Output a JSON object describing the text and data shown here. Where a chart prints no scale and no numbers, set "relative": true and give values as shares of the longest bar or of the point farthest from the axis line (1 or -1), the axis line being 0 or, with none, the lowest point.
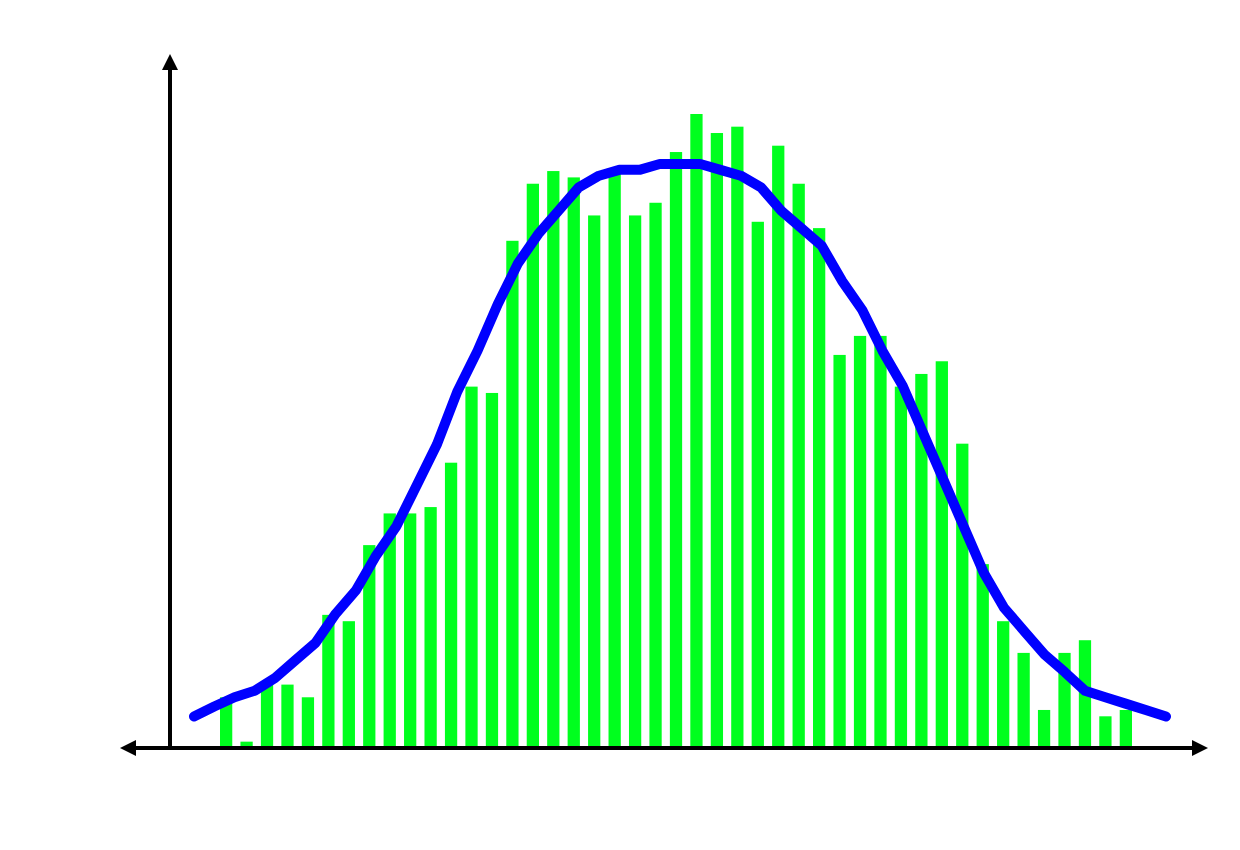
{
  "chart_data": [
    {
      "type": "bar",
      "relative": true,
      "categories": [
        null,
        null,
        null,
        null,
        null,
        null,
        null,
        null,
        null,
        null,
        null,
        null,
        null,
        null,
        null,
        null,
        null,
        null,
        null,
        null,
        null,
        null,
        null,
        null,
        null,
        null,
        null,
        null,
        null,
        null,
        null,
        null,
        null,
        null,
        null,
        null,
        null,
        null,
        null,
        null,
        null,
        null,
        null,
        null,
        null
      ],
      "series": [
        {
          "color": "#00ff1e",
          "values": [
            0.08,
            0.01,
            0.1,
            0.1,
            0.08,
            0.21,
            0.2,
            0.32,
            0.37,
            0.37,
            0.38,
            0.45,
            0.57,
            0.56,
            0.8,
            0.89,
            0.91,
            0.9,
            0.84,
            0.91,
            0.84,
            0.86,
            0.94,
            1,
            0.97,
            0.98,
            0.83,
            0.95,
            0.89,
            0.82,
            0.62,
            0.65,
            0.65,
            0.57,
            0.59,
            0.61,
            0.48,
            0.29,
            0.2,
            0.15,
            0.06,
            0.15,
            0.17,
            0.05,
            0.06
          ]
        }
      ]
    },
    {
      "type": "line",
      "relative": true,
      "categories": [
        null,
        null,
        null,
        null,
        null,
        null,
        null,
        null,
        null,
        null,
        null,
        null,
        null,
        null,
        null,
        null,
        null,
        null,
        null,
        null,
        null,
        null,
        null,
        null,
        null,
        null,
        null,
        null,
        null,
        null,
        null,
        null,
        null,
        null,
        null,
        null,
        null,
        null,
        null,
        null,
        null,
        null,
        null,
        null,
        null,
        null,
        null,
        null,
        null
      ],
      "series": [
        {
          "color": "#0000ff",
          "values": [
            0.054,
            0.071,
            0.087,
            0.098,
            0.12,
            0.15,
            0.18,
            0.23,
            0.27,
            0.33,
            0.38,
            0.45,
            0.52,
            0.61,
            0.68,
            0.76,
            0.83,
            0.88,
            0.92,
            0.96,
            0.98,
            0.99,
            0.99,
            1,
            1,
            1,
            0.99,
            0.98,
            0.96,
            0.92,
            0.89,
            0.86,
            0.8,
            0.75,
            0.68,
            0.62,
            0.54,
            0.46,
            0.38,
            0.3,
            0.24,
            0.2,
            0.16,
            0.13,
            0.098,
            0.087,
            0.076,
            0.065,
            0.054
          ]
        }
      ]
    }
  ]
}
